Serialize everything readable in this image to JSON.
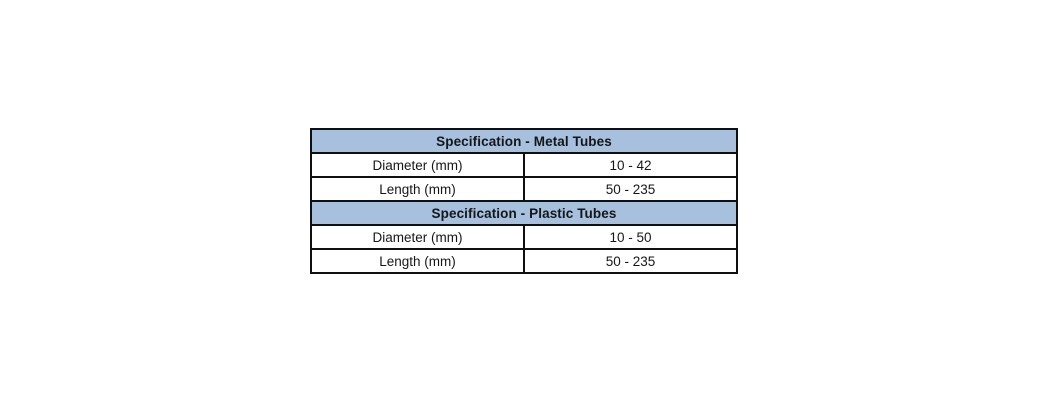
{
  "page": {
    "background_color": "#ffffff"
  },
  "table": {
    "border_color": "#0f0f0f",
    "header_bg_color": "#a6c0de",
    "header_text_color": "#1c2b4a",
    "body_text_color": "#161616",
    "sections": [
      {
        "title": "Specification - Metal Tubes",
        "rows": [
          {
            "label": "Diameter (mm)",
            "value": "10 - 42"
          },
          {
            "label": "Length (mm)",
            "value": "50 - 235"
          }
        ]
      },
      {
        "title": "Specification - Plastic Tubes",
        "rows": [
          {
            "label": "Diameter (mm)",
            "value": "10 - 50"
          },
          {
            "label": "Length (mm)",
            "value": "50 - 235"
          }
        ]
      }
    ]
  }
}
